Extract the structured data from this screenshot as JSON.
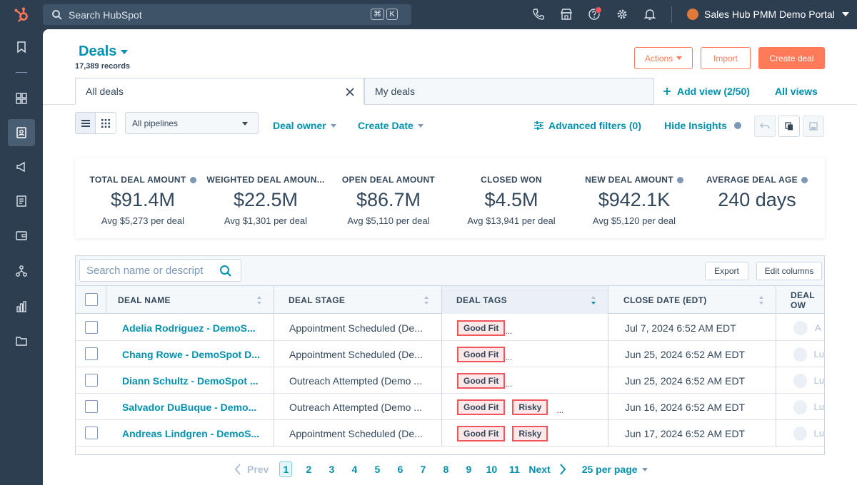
{
  "topbar": {
    "search_placeholder": "Search HubSpot",
    "kbd": [
      "⌘",
      "K"
    ],
    "portal_name": "Sales Hub PMM Demo Portal"
  },
  "page": {
    "title": "Deals",
    "records": "17,389 records",
    "actions_label": "Actions",
    "import_label": "Import",
    "create_label": "Create deal"
  },
  "tabs": [
    {
      "label": "All deals"
    },
    {
      "label": "My deals"
    }
  ],
  "views": {
    "add_label": "Add view (2/50)",
    "all_label": "All views"
  },
  "filters": {
    "pipeline": "All pipelines",
    "owner": "Deal owner",
    "date": "Create Date",
    "advanced": "Advanced filters (0)",
    "insights": "Hide Insights"
  },
  "metrics": [
    {
      "label": "TOTAL DEAL AMOUNT",
      "value": "$91.4M",
      "avg": "Avg $5,273 per deal",
      "info": true
    },
    {
      "label": "WEIGHTED DEAL AMOUN...",
      "value": "$22.5M",
      "avg": "Avg $1,301 per deal",
      "info": false
    },
    {
      "label": "OPEN DEAL AMOUNT",
      "value": "$86.7M",
      "avg": "Avg $5,110 per deal",
      "info": false
    },
    {
      "label": "CLOSED WON",
      "value": "$4.5M",
      "avg": "Avg $13,941 per deal",
      "info": false
    },
    {
      "label": "NEW DEAL AMOUNT",
      "value": "$942.1K",
      "avg": "Avg $5,120 per deal",
      "info": true
    },
    {
      "label": "AVERAGE DEAL AGE",
      "value": "240 days",
      "avg": "",
      "info": true
    }
  ],
  "table": {
    "search_placeholder": "Search name or descript",
    "export_label": "Export",
    "edit_columns_label": "Edit columns",
    "columns": [
      "DEAL NAME",
      "DEAL STAGE",
      "DEAL TAGS",
      "CLOSE DATE (EDT)",
      "DEAL OW"
    ],
    "rows": [
      {
        "name": "Adelia Rodriguez - DemoS...",
        "stage": "Appointment Scheduled (De...",
        "tags": [
          "Good Fit"
        ],
        "close": "Jul 7, 2024 6:52 AM EDT",
        "owner": "A"
      },
      {
        "name": "Chang Rowe - DemoSpot D...",
        "stage": "Appointment Scheduled (De...",
        "tags": [
          "Good Fit"
        ],
        "close": "Jun 25, 2024 6:52 AM EDT",
        "owner": "Lu"
      },
      {
        "name": "Diann Schultz - DemoSpot ...",
        "stage": "Outreach Attempted (Demo ...",
        "tags": [
          "Good Fit"
        ],
        "close": "Jun 25, 2024 6:52 AM EDT",
        "owner": "Lu"
      },
      {
        "name": "Salvador DuBuque - Demo...",
        "stage": "Outreach Attempted (Demo ...",
        "tags": [
          "Good Fit",
          "Risky"
        ],
        "close": "Jun 16, 2024 6:52 AM EDT",
        "owner": "Lu"
      },
      {
        "name": "Andreas Lindgren - DemoS...",
        "stage": "Appointment Scheduled (De...",
        "tags": [
          "Good Fit",
          "Risky"
        ],
        "close": "Jun 17, 2024 6:52 AM EDT",
        "owner": "Lu"
      }
    ],
    "ellipsis": "..."
  },
  "pagination": {
    "prev": "Prev",
    "pages": [
      "1",
      "2",
      "3",
      "4",
      "5",
      "6",
      "7",
      "8",
      "9",
      "10",
      "11"
    ],
    "current": "1",
    "next": "Next",
    "per_page": "25 per page"
  },
  "colors": {
    "accent": "#0091ae",
    "brand": "#ff7a59",
    "nav": "#2d3e50",
    "tag_border": "#f2545b"
  }
}
